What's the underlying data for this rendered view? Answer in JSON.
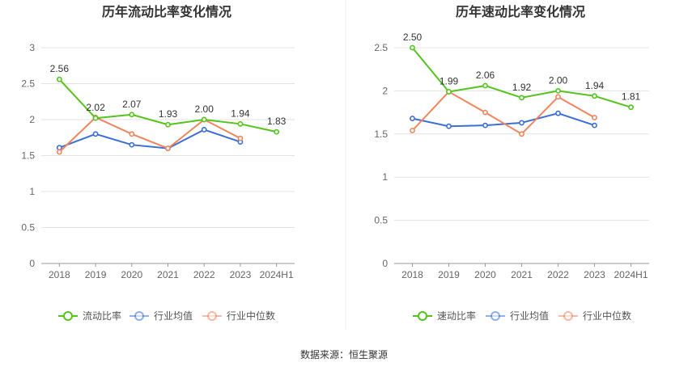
{
  "colors": {
    "primary": "#52c41a",
    "industry_avg": "#3b6fd6",
    "industry_median": "#f0845c",
    "grid": "#e3e3e3",
    "axis": "#999999"
  },
  "source": "数据来源：恒生聚源",
  "chart_data": [
    {
      "type": "line",
      "title": "历年流动比率变化情况",
      "categories": [
        "2018",
        "2019",
        "2020",
        "2021",
        "2022",
        "2023",
        "2024H1"
      ],
      "ylim": [
        0,
        3
      ],
      "yticks": [
        "0",
        "0.5",
        "1",
        "1.5",
        "2",
        "2.5",
        "3"
      ],
      "grid": true,
      "legend_position": "bottom",
      "series": [
        {
          "name": "流动比率",
          "values": [
            2.56,
            2.02,
            2.07,
            1.93,
            2.0,
            1.94,
            1.83
          ],
          "labels": [
            "2.56",
            "2.02",
            "2.07",
            "1.93",
            "2.00",
            "1.94",
            "1.83"
          ],
          "color": "#52c41a"
        },
        {
          "name": "行业均值",
          "values": [
            1.61,
            1.8,
            1.65,
            1.6,
            1.86,
            1.69,
            null
          ],
          "color": "#3b6fd6"
        },
        {
          "name": "行业中位数",
          "values": [
            1.55,
            2.03,
            1.8,
            1.6,
            2.0,
            1.74,
            null
          ],
          "color": "#f0845c"
        }
      ]
    },
    {
      "type": "line",
      "title": "历年速动比率变化情况",
      "categories": [
        "2018",
        "2019",
        "2020",
        "2021",
        "2022",
        "2023",
        "2024H1"
      ],
      "ylim": [
        0,
        2.5
      ],
      "yticks": [
        "0",
        "0.5",
        "1",
        "1.5",
        "2",
        "2.5"
      ],
      "grid": true,
      "legend_position": "bottom",
      "series": [
        {
          "name": "速动比率",
          "values": [
            2.5,
            1.99,
            2.06,
            1.92,
            2.0,
            1.94,
            1.81
          ],
          "labels": [
            "2.50",
            "1.99",
            "2.06",
            "1.92",
            "2.00",
            "1.94",
            "1.81"
          ],
          "color": "#52c41a"
        },
        {
          "name": "行业均值",
          "values": [
            1.68,
            1.59,
            1.6,
            1.63,
            1.74,
            1.6,
            null
          ],
          "color": "#3b6fd6"
        },
        {
          "name": "行业中位数",
          "values": [
            1.54,
            1.99,
            1.75,
            1.5,
            1.93,
            1.69,
            null
          ],
          "color": "#f0845c"
        }
      ]
    }
  ]
}
